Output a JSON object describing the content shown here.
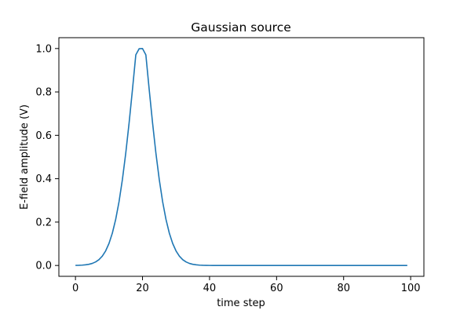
{
  "chart_data": {
    "type": "line",
    "title": "Gaussian source",
    "xlabel": "time step",
    "ylabel": "E-field amplitude (V)",
    "xlim": [
      -4.95,
      103.95
    ],
    "ylim": [
      -0.05,
      1.05
    ],
    "xticks": [
      0,
      20,
      40,
      60,
      80,
      100
    ],
    "yticks": [
      0.0,
      0.2,
      0.4,
      0.6,
      0.8,
      1.0
    ],
    "xtick_labels": [
      "0",
      "20",
      "40",
      "60",
      "80",
      "100"
    ],
    "ytick_labels": [
      "0.0",
      "0.2",
      "0.4",
      "0.6",
      "0.8",
      "1.0"
    ],
    "grid": false,
    "series": [
      {
        "color": "#1f77b4",
        "x": [
          0,
          1,
          2,
          3,
          4,
          5,
          6,
          7,
          8,
          9,
          10,
          11,
          12,
          13,
          14,
          15,
          16,
          17,
          18,
          19,
          20,
          21,
          22,
          23,
          24,
          25,
          26,
          27,
          28,
          29,
          30,
          31,
          32,
          33,
          34,
          35,
          36,
          37,
          38,
          39,
          40,
          41,
          42,
          43,
          44,
          45,
          46,
          47,
          48,
          49,
          50,
          51,
          52,
          53,
          54,
          55,
          56,
          57,
          58,
          59,
          60,
          61,
          62,
          63,
          64,
          65,
          66,
          67,
          68,
          69,
          70,
          71,
          72,
          73,
          74,
          75,
          76,
          77,
          78,
          79,
          80,
          81,
          82,
          83,
          84,
          85,
          86,
          87,
          88,
          89,
          90,
          91,
          92,
          93,
          94,
          95,
          96,
          97,
          98,
          99
        ],
        "y": [
          0.0004,
          0.0008,
          0.0016,
          0.003,
          0.0054,
          0.0095,
          0.0162,
          0.0268,
          0.0431,
          0.0671,
          0.1015,
          0.149,
          0.2125,
          0.2943,
          0.3959,
          0.5174,
          0.6569,
          0.8103,
          0.9708,
          0.9991,
          1.0,
          0.9708,
          0.8103,
          0.6569,
          0.5174,
          0.3959,
          0.2943,
          0.2125,
          0.149,
          0.1015,
          0.0671,
          0.0431,
          0.0268,
          0.0162,
          0.0095,
          0.0054,
          0.003,
          0.0016,
          0.0008,
          0.0004,
          0.0002,
          0.0001,
          0,
          0,
          0,
          0,
          0,
          0,
          0,
          0,
          0,
          0,
          0,
          0,
          0,
          0,
          0,
          0,
          0,
          0,
          0,
          0,
          0,
          0,
          0,
          0,
          0,
          0,
          0,
          0,
          0,
          0,
          0,
          0,
          0,
          0,
          0,
          0,
          0,
          0,
          0,
          0,
          0,
          0,
          0,
          0,
          0,
          0,
          0,
          0,
          0,
          0,
          0,
          0,
          0,
          0,
          0,
          0,
          0,
          0
        ]
      }
    ]
  }
}
